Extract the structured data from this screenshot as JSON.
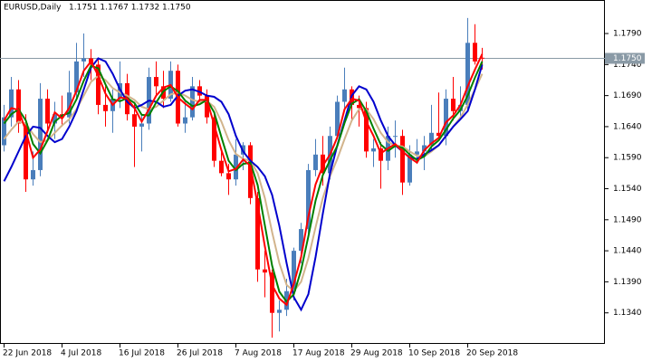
{
  "chart_data": {
    "type": "candlestick",
    "title": "EURUSD,Daily",
    "header_quote": "1.1751 1.1767 1.1732 1.1750",
    "categories": [
      "22 Jun 2018",
      null,
      null,
      null,
      null,
      null,
      null,
      null,
      "4 Jul 2018",
      null,
      null,
      null,
      null,
      null,
      null,
      null,
      "16 Jul 2018",
      null,
      null,
      null,
      null,
      null,
      null,
      null,
      "26 Jul 2018",
      null,
      null,
      null,
      null,
      null,
      null,
      null,
      "7 Aug 2018",
      null,
      null,
      null,
      null,
      null,
      null,
      null,
      "17 Aug 2018",
      null,
      null,
      null,
      null,
      null,
      null,
      null,
      "29 Aug 2018",
      null,
      null,
      null,
      null,
      null,
      null,
      null,
      "10 Sep 2018",
      null,
      null,
      null,
      null,
      null,
      null,
      null,
      "20 Sep 2018",
      null,
      null
    ],
    "candles": {
      "up_color": "#4a7ebb",
      "down_color": "#ff0000",
      "open": [
        1.161,
        1.1655,
        1.17,
        1.1645,
        1.1555,
        1.157,
        1.1685,
        1.1645,
        1.166,
        1.1655,
        1.1695,
        1.1745,
        1.175,
        1.174,
        1.1675,
        1.1665,
        1.1685,
        1.171,
        1.166,
        1.164,
        1.1645,
        1.172,
        1.1705,
        1.1685,
        1.173,
        1.1645,
        1.1655,
        1.1705,
        1.169,
        1.1655,
        1.1585,
        1.1565,
        1.1555,
        1.1595,
        1.161,
        1.1525,
        1.141,
        1.1405,
        1.134,
        1.1345,
        1.1375,
        1.144,
        1.1475,
        1.157,
        1.1595,
        1.1565,
        1.1625,
        1.168,
        1.17,
        1.1675,
        1.167,
        1.16,
        1.1605,
        1.1585,
        1.1625,
        1.1625,
        1.155,
        1.1595,
        1.16,
        1.161,
        1.163,
        1.1625,
        1.1685,
        1.1665,
        1.1675,
        1.1775,
        1.1751
      ],
      "high": [
        1.1675,
        1.172,
        1.1715,
        1.166,
        1.16,
        1.171,
        1.17,
        1.168,
        1.169,
        1.173,
        1.1775,
        1.179,
        1.1765,
        1.175,
        1.1705,
        1.17,
        1.1745,
        1.1725,
        1.168,
        1.166,
        1.1735,
        1.1745,
        1.173,
        1.1745,
        1.174,
        1.168,
        1.172,
        1.1715,
        1.17,
        1.1665,
        1.16,
        1.158,
        1.162,
        1.1615,
        1.1615,
        1.1535,
        1.144,
        1.141,
        1.136,
        1.1395,
        1.1445,
        1.1485,
        1.158,
        1.162,
        1.1625,
        1.164,
        1.169,
        1.1735,
        1.1705,
        1.169,
        1.168,
        1.162,
        1.1615,
        1.164,
        1.165,
        1.1635,
        1.161,
        1.162,
        1.1625,
        1.1675,
        1.1695,
        1.17,
        1.172,
        1.1705,
        1.1815,
        1.1805,
        1.1767
      ],
      "low": [
        1.16,
        1.164,
        1.163,
        1.1535,
        1.1545,
        1.156,
        1.163,
        1.162,
        1.164,
        1.1645,
        1.1685,
        1.172,
        1.1715,
        1.166,
        1.164,
        1.163,
        1.167,
        1.165,
        1.1575,
        1.16,
        1.1635,
        1.169,
        1.167,
        1.168,
        1.164,
        1.163,
        1.165,
        1.168,
        1.1645,
        1.1575,
        1.156,
        1.153,
        1.1545,
        1.157,
        1.1515,
        1.139,
        1.1365,
        1.13,
        1.131,
        1.1335,
        1.136,
        1.142,
        1.1465,
        1.156,
        1.1545,
        1.1555,
        1.162,
        1.167,
        1.165,
        1.164,
        1.159,
        1.1575,
        1.154,
        1.157,
        1.159,
        1.153,
        1.1545,
        1.158,
        1.157,
        1.16,
        1.162,
        1.161,
        1.165,
        1.1655,
        1.1665,
        1.174,
        1.1732
      ],
      "close": [
        1.1655,
        1.17,
        1.1645,
        1.1555,
        1.157,
        1.1685,
        1.1645,
        1.166,
        1.1655,
        1.1695,
        1.1745,
        1.175,
        1.174,
        1.1675,
        1.1665,
        1.1685,
        1.171,
        1.166,
        1.164,
        1.1645,
        1.172,
        1.1705,
        1.1685,
        1.173,
        1.1645,
        1.1655,
        1.1705,
        1.169,
        1.1655,
        1.1585,
        1.1565,
        1.1555,
        1.1595,
        1.161,
        1.1525,
        1.141,
        1.1405,
        1.134,
        1.1345,
        1.1375,
        1.144,
        1.1475,
        1.157,
        1.1595,
        1.1565,
        1.1625,
        1.168,
        1.17,
        1.1675,
        1.167,
        1.16,
        1.1605,
        1.1585,
        1.1625,
        1.1625,
        1.155,
        1.1595,
        1.16,
        1.161,
        1.163,
        1.1625,
        1.1685,
        1.1665,
        1.1675,
        1.1775,
        1.1745,
        1.175
      ]
    },
    "lines": [
      {
        "color": "#d2b48c",
        "values": [
          1.162,
          1.1635,
          1.1648,
          1.1645,
          1.1628,
          1.1615,
          1.1618,
          1.163,
          1.1642,
          1.1652,
          1.1668,
          1.169,
          1.1712,
          1.1722,
          1.1715,
          1.1702,
          1.1695,
          1.169,
          1.1683,
          1.1672,
          1.1668,
          1.1672,
          1.1682,
          1.1692,
          1.1695,
          1.169,
          1.1683,
          1.168,
          1.1681,
          1.1672,
          1.1648,
          1.1618,
          1.1596,
          1.1588,
          1.1585,
          1.1565,
          1.1525,
          1.147,
          1.142,
          1.1385,
          1.1375,
          1.139,
          1.1428,
          1.1478,
          1.1525,
          1.156,
          1.1588,
          1.162,
          1.165,
          1.1668,
          1.1668,
          1.1652,
          1.163,
          1.1615,
          1.161,
          1.1608,
          1.16,
          1.1593,
          1.1592,
          1.16,
          1.161,
          1.1625,
          1.164,
          1.1655,
          1.1675,
          1.17,
          1.1725
        ]
      },
      {
        "color": "#0000cd",
        "values": [
          1.1552,
          1.1575,
          1.16,
          1.1625,
          1.164,
          1.1638,
          1.1625,
          1.1615,
          1.162,
          1.164,
          1.1665,
          1.17,
          1.1735,
          1.175,
          1.1745,
          1.1725,
          1.17,
          1.168,
          1.167,
          1.1675,
          1.1682,
          1.168,
          1.1672,
          1.1675,
          1.169,
          1.1698,
          1.17,
          1.1696,
          1.169,
          1.1688,
          1.168,
          1.166,
          1.1625,
          1.16,
          1.1585,
          1.1575,
          1.156,
          1.153,
          1.148,
          1.142,
          1.1365,
          1.1345,
          1.137,
          1.143,
          1.15,
          1.1565,
          1.161,
          1.165,
          1.169,
          1.1705,
          1.17,
          1.168,
          1.165,
          1.1625,
          1.161,
          1.16,
          1.159,
          1.1588,
          1.1595,
          1.1602,
          1.161,
          1.1625,
          1.164,
          1.1652,
          1.1665,
          1.17,
          1.174
        ]
      },
      {
        "color": "#008000",
        "values": [
          1.1645,
          1.166,
          1.1668,
          1.165,
          1.1612,
          1.1597,
          1.1618,
          1.1648,
          1.1658,
          1.1662,
          1.1684,
          1.1714,
          1.1738,
          1.1734,
          1.1708,
          1.1684,
          1.1681,
          1.1686,
          1.1678,
          1.1659,
          1.1658,
          1.1679,
          1.1697,
          1.1705,
          1.1697,
          1.1682,
          1.1673,
          1.1676,
          1.1683,
          1.1663,
          1.1623,
          1.1585,
          1.157,
          1.158,
          1.1582,
          1.1546,
          1.1481,
          1.1416,
          1.1374,
          1.1358,
          1.137,
          1.1409,
          1.1463,
          1.1521,
          1.1562,
          1.1586,
          1.1609,
          1.1646,
          1.1677,
          1.1684,
          1.1665,
          1.1637,
          1.1611,
          1.1601,
          1.1609,
          1.1606,
          1.1595,
          1.1586,
          1.1592,
          1.1608,
          1.1618,
          1.1635,
          1.1653,
          1.1667,
          1.169,
          1.1719,
          1.1745
        ]
      },
      {
        "color": "#ff0000",
        "values": [
          1.165,
          1.167,
          1.1667,
          1.1633,
          1.159,
          1.1603,
          1.1633,
          1.1663,
          1.1653,
          1.167,
          1.1698,
          1.173,
          1.1745,
          1.1722,
          1.1693,
          1.1675,
          1.1687,
          1.1685,
          1.167,
          1.1648,
          1.1668,
          1.169,
          1.1703,
          1.1707,
          1.1687,
          1.1677,
          1.1668,
          1.1683,
          1.1683,
          1.1643,
          1.1602,
          1.1568,
          1.1572,
          1.1587,
          1.1577,
          1.1515,
          1.1447,
          1.1385,
          1.1363,
          1.1353,
          1.1387,
          1.143,
          1.1495,
          1.1547,
          1.1577,
          1.1595,
          1.1623,
          1.1668,
          1.1685,
          1.1682,
          1.1648,
          1.1625,
          1.1597,
          1.1605,
          1.1612,
          1.16,
          1.159,
          1.1582,
          1.1602,
          1.1613,
          1.1622,
          1.1647,
          1.1658,
          1.1675,
          1.1705,
          1.1732,
          1.1757
        ]
      }
    ],
    "last_price": {
      "value": 1.175,
      "label": "1.1750"
    },
    "ylim": [
      1.129,
      1.1844
    ],
    "yticks": [
      {
        "value": 1.179,
        "label": "1.1790"
      },
      {
        "value": 1.174,
        "label": "1.1740"
      },
      {
        "value": 1.169,
        "label": "1.1690"
      },
      {
        "value": 1.164,
        "label": "1.1640"
      },
      {
        "value": 1.159,
        "label": "1.1590"
      },
      {
        "value": 1.154,
        "label": "1.1540"
      },
      {
        "value": 1.149,
        "label": "1.1490"
      },
      {
        "value": 1.144,
        "label": "1.1440"
      },
      {
        "value": 1.139,
        "label": "1.1390"
      },
      {
        "value": 1.134,
        "label": "1.1340"
      }
    ]
  }
}
